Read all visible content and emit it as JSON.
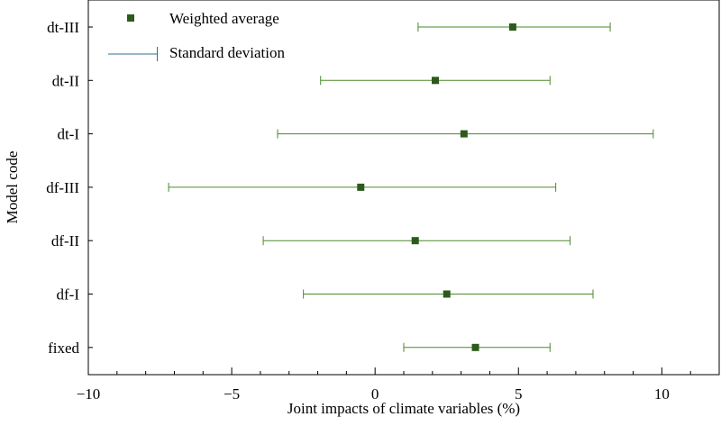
{
  "chart_data": {
    "type": "errorbar",
    "xlabel": "Joint impacts of climate variables (%)",
    "ylabel": "Model code",
    "xlim": [
      -10,
      12
    ],
    "xticks": [
      -10,
      -5,
      0,
      5,
      10
    ],
    "xtick_labels": [
      "−10",
      "−5",
      "0",
      "5",
      "10"
    ],
    "categories": [
      "dt-III",
      "dt-II",
      "dt-I",
      "df-III",
      "df-II",
      "df-I",
      "fixed"
    ],
    "weighted_average": [
      4.8,
      2.1,
      3.1,
      -0.5,
      1.4,
      2.5,
      3.5
    ],
    "std_lower": [
      1.5,
      -1.9,
      -3.4,
      -7.2,
      -3.9,
      -2.5,
      1.0
    ],
    "std_upper": [
      8.2,
      6.1,
      9.7,
      6.3,
      6.8,
      7.6,
      6.1
    ],
    "legend": [
      {
        "label": "Weighted average",
        "marker": "square"
      },
      {
        "label": "Standard deviation",
        "marker": "errorbar"
      }
    ],
    "legend_position": "top-left",
    "colors": {
      "marker": "#2d5a1b",
      "errorbar": "#4a8a2a",
      "legend_errorbar": "#2f6f8f"
    },
    "grid": false
  }
}
